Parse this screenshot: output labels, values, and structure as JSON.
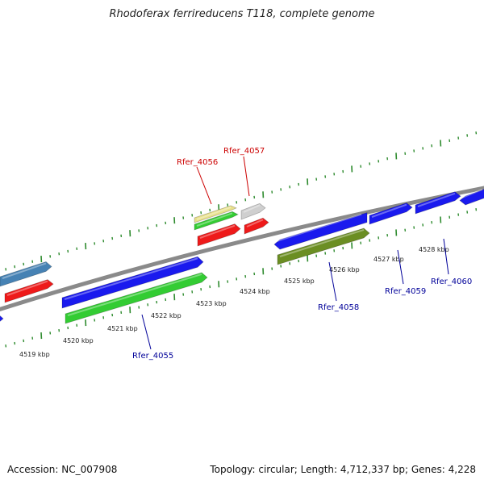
{
  "title": "Rhodoferax ferrireducens T118, complete genome",
  "footer": {
    "accession": "Accession: NC_007908",
    "topology": "Topology: circular; Length: 4,712,337 bp; Genes: 4,228"
  },
  "colors": {
    "forward_gene": "#1a1aee",
    "reverse_gene": "#ee1a1a",
    "green_gene": "#33cc33",
    "olive_gene": "#6b8e23",
    "steelblue_gene": "#4682b4",
    "yellow_gene": "#e8e08a",
    "grey_gene": "#cfcfcf",
    "backbone": "#8a8a8a",
    "tick": "#2e8b2e",
    "label_blue": "#000099",
    "label_red": "#cc0000"
  },
  "kbp_labels": [
    "4519 kbp",
    "4520 kbp",
    "4521 kbp",
    "4522 kbp",
    "4523 kbp",
    "4524 kbp",
    "4525 kbp",
    "4526 kbp",
    "4527 kbp",
    "4528 kbp"
  ],
  "gene_labels": [
    {
      "text": "Rfer_4055",
      "strand": "forward"
    },
    {
      "text": "Rfer_4056",
      "strand": "reverse"
    },
    {
      "text": "Rfer_4057",
      "strand": "reverse"
    },
    {
      "text": "Rfer_4058",
      "strand": "forward"
    },
    {
      "text": "Rfer_4059",
      "strand": "forward"
    },
    {
      "text": "Rfer_4060",
      "strand": "forward"
    }
  ]
}
